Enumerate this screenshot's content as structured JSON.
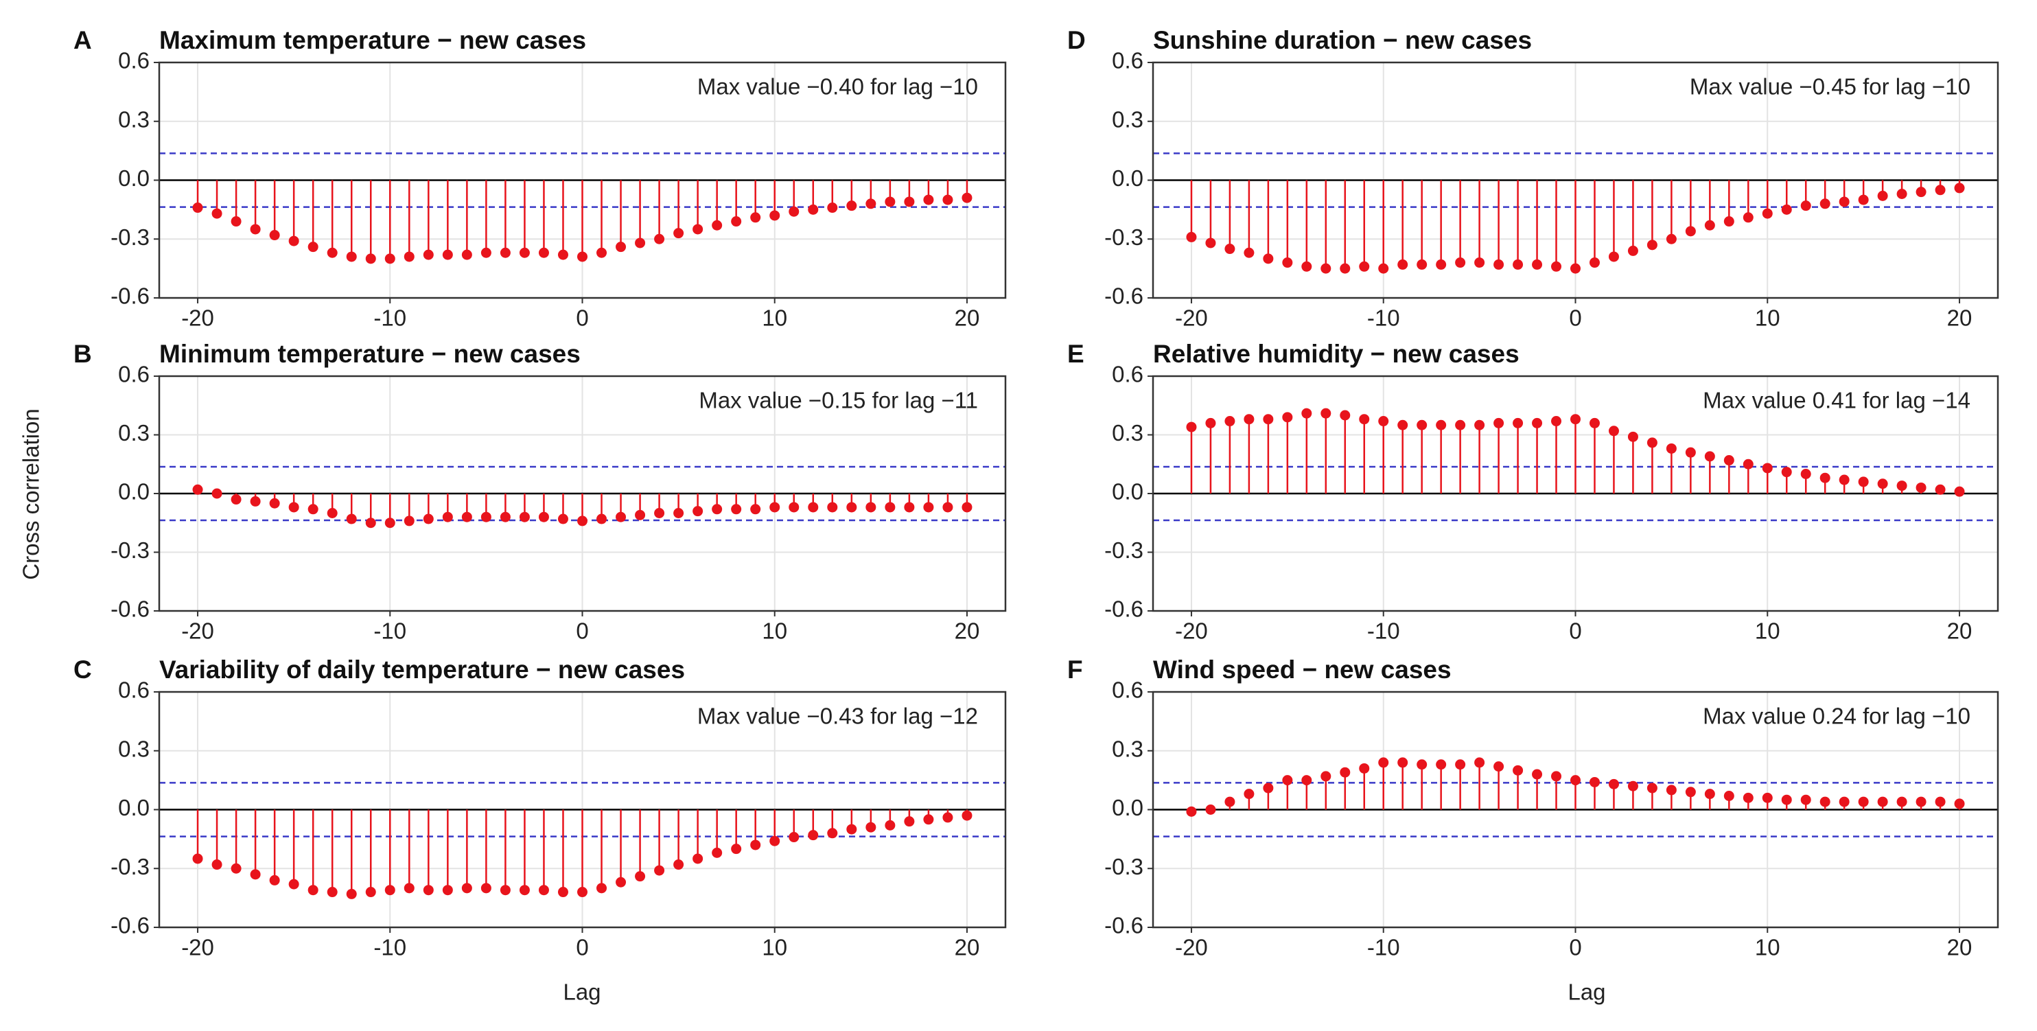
{
  "ylabel": "Cross correlation",
  "xlabel": "Lag",
  "chart_data": [
    {
      "type": "stem",
      "label": "A",
      "title": "Maximum temperature − new cases",
      "annotation": "Max value  −0.40 for lag −10",
      "x": [
        -20,
        -19,
        -18,
        -17,
        -16,
        -15,
        -14,
        -13,
        -12,
        -11,
        -10,
        -9,
        -8,
        -7,
        -6,
        -5,
        -4,
        -3,
        -2,
        -1,
        0,
        1,
        2,
        3,
        4,
        5,
        6,
        7,
        8,
        9,
        10,
        11,
        12,
        13,
        14,
        15,
        16,
        17,
        18,
        19,
        20
      ],
      "values": [
        -0.14,
        -0.17,
        -0.21,
        -0.25,
        -0.28,
        -0.31,
        -0.34,
        -0.37,
        -0.39,
        -0.4,
        -0.4,
        -0.39,
        -0.38,
        -0.38,
        -0.38,
        -0.37,
        -0.37,
        -0.37,
        -0.37,
        -0.38,
        -0.39,
        -0.37,
        -0.34,
        -0.32,
        -0.3,
        -0.27,
        -0.25,
        -0.23,
        -0.21,
        -0.19,
        -0.18,
        -0.16,
        -0.15,
        -0.14,
        -0.13,
        -0.12,
        -0.11,
        -0.11,
        -0.1,
        -0.1,
        -0.09
      ],
      "color": "#e8141c",
      "ci_lines": [
        0.137,
        -0.137
      ],
      "ci_color": "#3a3ac8",
      "xlim": [
        -22,
        22
      ],
      "xticks": [
        -20,
        -10,
        0,
        10,
        20
      ],
      "ylim": [
        -0.6,
        0.6
      ],
      "yticks": [
        0.6,
        0.3,
        {
          "value": 0,
          "label": "0.0"
        },
        -0.3,
        -0.6
      ],
      "grid": true
    },
    {
      "type": "stem",
      "label": "B",
      "title": "Minimum temperature − new cases",
      "annotation": "Max value  −0.15 for lag −11",
      "x": [
        -20,
        -19,
        -18,
        -17,
        -16,
        -15,
        -14,
        -13,
        -12,
        -11,
        -10,
        -9,
        -8,
        -7,
        -6,
        -5,
        -4,
        -3,
        -2,
        -1,
        0,
        1,
        2,
        3,
        4,
        5,
        6,
        7,
        8,
        9,
        10,
        11,
        12,
        13,
        14,
        15,
        16,
        17,
        18,
        19,
        20
      ],
      "values": [
        0.02,
        0.0,
        -0.03,
        -0.04,
        -0.05,
        -0.07,
        -0.08,
        -0.1,
        -0.13,
        -0.15,
        -0.15,
        -0.14,
        -0.13,
        -0.12,
        -0.12,
        -0.12,
        -0.12,
        -0.12,
        -0.12,
        -0.13,
        -0.14,
        -0.13,
        -0.12,
        -0.11,
        -0.1,
        -0.1,
        -0.09,
        -0.08,
        -0.08,
        -0.08,
        -0.07,
        -0.07,
        -0.07,
        -0.07,
        -0.07,
        -0.07,
        -0.07,
        -0.07,
        -0.07,
        -0.07,
        -0.07
      ],
      "color": "#e8141c",
      "ci_lines": [
        0.137,
        -0.137
      ],
      "ci_color": "#3a3ac8",
      "xlim": [
        -22,
        22
      ],
      "xticks": [
        -20,
        -10,
        0,
        10,
        20
      ],
      "ylim": [
        -0.6,
        0.6
      ],
      "yticks": [
        0.6,
        0.3,
        {
          "value": 0,
          "label": "0.0"
        },
        -0.3,
        -0.6
      ],
      "grid": true
    },
    {
      "type": "stem",
      "label": "C",
      "title": "Variability of daily temperature − new cases",
      "annotation": "Max value  −0.43 for lag −12",
      "x": [
        -20,
        -19,
        -18,
        -17,
        -16,
        -15,
        -14,
        -13,
        -12,
        -11,
        -10,
        -9,
        -8,
        -7,
        -6,
        -5,
        -4,
        -3,
        -2,
        -1,
        0,
        1,
        2,
        3,
        4,
        5,
        6,
        7,
        8,
        9,
        10,
        11,
        12,
        13,
        14,
        15,
        16,
        17,
        18,
        19,
        20
      ],
      "values": [
        -0.25,
        -0.28,
        -0.3,
        -0.33,
        -0.36,
        -0.38,
        -0.41,
        -0.42,
        -0.43,
        -0.42,
        -0.41,
        -0.4,
        -0.41,
        -0.41,
        -0.4,
        -0.4,
        -0.41,
        -0.41,
        -0.41,
        -0.42,
        -0.42,
        -0.4,
        -0.37,
        -0.34,
        -0.31,
        -0.28,
        -0.25,
        -0.22,
        -0.2,
        -0.18,
        -0.16,
        -0.14,
        -0.13,
        -0.12,
        -0.1,
        -0.09,
        -0.08,
        -0.06,
        -0.05,
        -0.04,
        -0.03
      ],
      "color": "#e8141c",
      "ci_lines": [
        0.137,
        -0.137
      ],
      "ci_color": "#3a3ac8",
      "xlim": [
        -22,
        22
      ],
      "xticks": [
        -20,
        -10,
        0,
        10,
        20
      ],
      "ylim": [
        -0.6,
        0.6
      ],
      "yticks": [
        0.6,
        0.3,
        {
          "value": 0,
          "label": "0.0"
        },
        -0.3,
        -0.6
      ],
      "grid": true
    },
    {
      "type": "stem",
      "label": "D",
      "title": "Sunshine duration − new cases",
      "annotation": "Max value  −0.45 for lag −10",
      "x": [
        -20,
        -19,
        -18,
        -17,
        -16,
        -15,
        -14,
        -13,
        -12,
        -11,
        -10,
        -9,
        -8,
        -7,
        -6,
        -5,
        -4,
        -3,
        -2,
        -1,
        0,
        1,
        2,
        3,
        4,
        5,
        6,
        7,
        8,
        9,
        10,
        11,
        12,
        13,
        14,
        15,
        16,
        17,
        18,
        19,
        20
      ],
      "values": [
        -0.29,
        -0.32,
        -0.35,
        -0.37,
        -0.4,
        -0.42,
        -0.44,
        -0.45,
        -0.45,
        -0.44,
        -0.45,
        -0.43,
        -0.43,
        -0.43,
        -0.42,
        -0.42,
        -0.43,
        -0.43,
        -0.43,
        -0.44,
        -0.45,
        -0.42,
        -0.39,
        -0.36,
        -0.33,
        -0.3,
        -0.26,
        -0.23,
        -0.21,
        -0.19,
        -0.17,
        -0.15,
        -0.13,
        -0.12,
        -0.11,
        -0.1,
        -0.08,
        -0.07,
        -0.06,
        -0.05,
        -0.04
      ],
      "color": "#e8141c",
      "ci_lines": [
        0.137,
        -0.137
      ],
      "ci_color": "#3a3ac8",
      "xlim": [
        -22,
        22
      ],
      "xticks": [
        -20,
        -10,
        0,
        10,
        20
      ],
      "ylim": [
        -0.6,
        0.6
      ],
      "yticks": [
        0.6,
        0.3,
        {
          "value": 0,
          "label": "0.0"
        },
        -0.3,
        -0.6
      ],
      "grid": true
    },
    {
      "type": "stem",
      "label": "E",
      "title": "Relative humidity − new cases",
      "annotation": "Max value  0.41 for lag −14",
      "x": [
        -20,
        -19,
        -18,
        -17,
        -16,
        -15,
        -14,
        -13,
        -12,
        -11,
        -10,
        -9,
        -8,
        -7,
        -6,
        -5,
        -4,
        -3,
        -2,
        -1,
        0,
        1,
        2,
        3,
        4,
        5,
        6,
        7,
        8,
        9,
        10,
        11,
        12,
        13,
        14,
        15,
        16,
        17,
        18,
        19,
        20
      ],
      "values": [
        0.34,
        0.36,
        0.37,
        0.38,
        0.38,
        0.39,
        0.41,
        0.41,
        0.4,
        0.38,
        0.37,
        0.35,
        0.35,
        0.35,
        0.35,
        0.35,
        0.36,
        0.36,
        0.36,
        0.37,
        0.38,
        0.36,
        0.32,
        0.29,
        0.26,
        0.23,
        0.21,
        0.19,
        0.17,
        0.15,
        0.13,
        0.11,
        0.1,
        0.08,
        0.07,
        0.06,
        0.05,
        0.04,
        0.03,
        0.02,
        0.01
      ],
      "color": "#e8141c",
      "ci_lines": [
        0.137,
        -0.137
      ],
      "ci_color": "#3a3ac8",
      "xlim": [
        -22,
        22
      ],
      "xticks": [
        -20,
        -10,
        0,
        10,
        20
      ],
      "ylim": [
        -0.6,
        0.6
      ],
      "yticks": [
        0.6,
        0.3,
        {
          "value": 0,
          "label": "0.0"
        },
        -0.3,
        -0.6
      ],
      "grid": true
    },
    {
      "type": "stem",
      "label": "F",
      "title": "Wind speed − new cases",
      "annotation": "Max value  0.24 for lag −10",
      "x": [
        -20,
        -19,
        -18,
        -17,
        -16,
        -15,
        -14,
        -13,
        -12,
        -11,
        -10,
        -9,
        -8,
        -7,
        -6,
        -5,
        -4,
        -3,
        -2,
        -1,
        0,
        1,
        2,
        3,
        4,
        5,
        6,
        7,
        8,
        9,
        10,
        11,
        12,
        13,
        14,
        15,
        16,
        17,
        18,
        19,
        20
      ],
      "values": [
        -0.01,
        0.0,
        0.04,
        0.08,
        0.11,
        0.15,
        0.15,
        0.17,
        0.19,
        0.21,
        0.24,
        0.24,
        0.23,
        0.23,
        0.23,
        0.24,
        0.22,
        0.2,
        0.18,
        0.17,
        0.15,
        0.14,
        0.13,
        0.12,
        0.11,
        0.1,
        0.09,
        0.08,
        0.07,
        0.06,
        0.06,
        0.05,
        0.05,
        0.04,
        0.04,
        0.04,
        0.04,
        0.04,
        0.04,
        0.04,
        0.03
      ],
      "color": "#e8141c",
      "ci_lines": [
        0.137,
        -0.137
      ],
      "ci_color": "#3a3ac8",
      "xlim": [
        -22,
        22
      ],
      "xticks": [
        -20,
        -10,
        0,
        10,
        20
      ],
      "ylim": [
        -0.6,
        0.6
      ],
      "yticks": [
        0.6,
        0.3,
        {
          "value": 0,
          "label": "0.0"
        },
        -0.3,
        -0.6
      ],
      "grid": true
    }
  ]
}
